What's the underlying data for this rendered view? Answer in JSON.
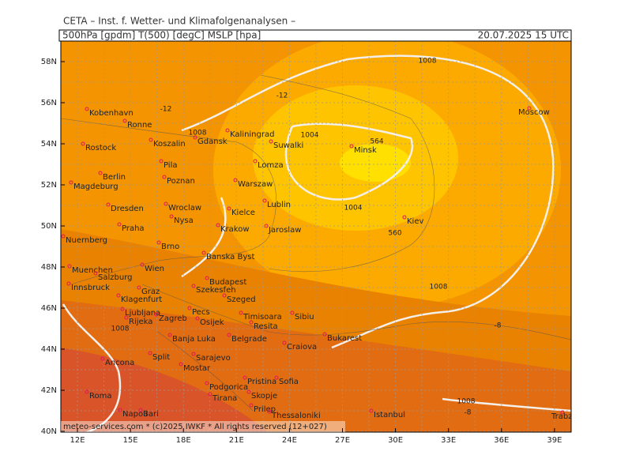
{
  "header": {
    "title": "CETA – Inst. f. Wetter- und Klimafolgenanalysen –",
    "parameters": "500hPa [gpdm] T(500) [degC] MSLP [hpa]",
    "valid_time": "20.07.2025 15 UTC"
  },
  "footer": "meteo-services.com * (c)2025 IWKF * All rights reserved (12+027)",
  "lat_labels": [
    "58N",
    "56N",
    "54N",
    "52N",
    "50N",
    "48N",
    "46N",
    "44N",
    "42N",
    "40N"
  ],
  "lon_labels": [
    "12E",
    "15E",
    "18E",
    "21E",
    "24E",
    "27E",
    "30E",
    "33E",
    "36E",
    "39E"
  ],
  "cities": [
    "Kobenhavn",
    "Ronne",
    "Rostock",
    "Koszalin",
    "Gdansk",
    "Kaliningrad",
    "Suwalki",
    "Minsk",
    "Moscow",
    "Pila",
    "Berlin",
    "Poznan",
    "Lomza",
    "Magdeburg",
    "Warszaw",
    "Lublin",
    "Dresden",
    "Wroclaw",
    "Kielce",
    "Nysa",
    "Praha",
    "Krakow",
    "Jaroslaw",
    "Kiev",
    "Nuernberg",
    "Brno",
    "Banska Byst",
    "Wien",
    "Muenchen",
    "Salzburg",
    "Budapest",
    "Szekesfeh",
    "Innsbruck",
    "Graz",
    "Klagenfurt",
    "Szeged",
    "Ljubljana",
    "Pecs",
    "Zagreb",
    "Rijeka",
    "Osijek",
    "Timisoara",
    "Sibiu",
    "Resita",
    "Banja Luka",
    "Belgrade",
    "Bukarest",
    "Craiova",
    "Ancona",
    "Split",
    "Sarajevo",
    "Mostar",
    "Sofia",
    "Pristina",
    "Podgorica",
    "Skopje",
    "Roma",
    "Tirana",
    "Prilep",
    "Napoli",
    "Bari",
    "Thessaloniki",
    "Istanbul",
    "Trabzon"
  ],
  "isobar_labels": [
    "1008",
    "1008",
    "1004",
    "1004",
    "1008",
    "1008",
    "1008"
  ],
  "contour_labels": [
    "-12",
    "-12",
    "564",
    "560",
    "-8",
    "-8"
  ]
}
